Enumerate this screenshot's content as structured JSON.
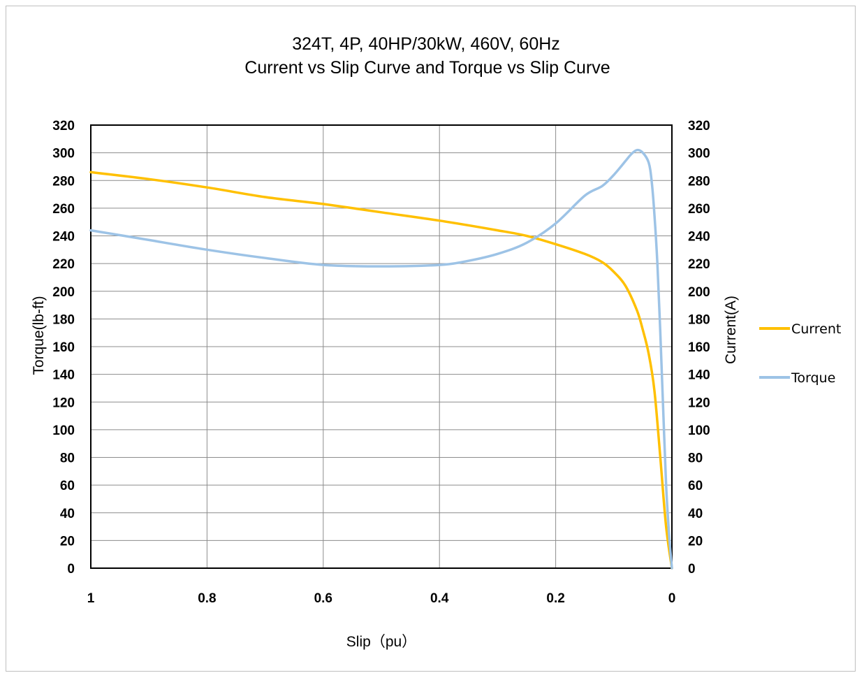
{
  "chart_data": {
    "type": "line",
    "title": "324T, 4P, 40HP/30kW, 460V, 60Hz",
    "subtitle": "Current vs Slip Curve and Torque vs Slip Curve",
    "xlabel": "Slip（pu）",
    "ylabel_left": "Torque(lb-ft)",
    "ylabel_right": "Current(A)",
    "xlim": [
      1,
      0
    ],
    "x_reversed": true,
    "ylim_left": [
      0,
      320
    ],
    "ylim_right": [
      0,
      320
    ],
    "x_ticks": [
      "1",
      "0.8",
      "0.6",
      "0.4",
      "0.2",
      "0"
    ],
    "x_tick_values": [
      1,
      0.8,
      0.6,
      0.4,
      0.2,
      0
    ],
    "y_ticks": [
      "0",
      "20",
      "40",
      "60",
      "80",
      "100",
      "120",
      "140",
      "160",
      "180",
      "200",
      "220",
      "240",
      "260",
      "280",
      "300",
      "320"
    ],
    "y_tick_values": [
      0,
      20,
      40,
      60,
      80,
      100,
      120,
      140,
      160,
      180,
      200,
      220,
      240,
      260,
      280,
      300,
      320
    ],
    "grid": true,
    "legend_position": "right",
    "series": [
      {
        "name": "Current",
        "axis": "right",
        "color": "#FFC000",
        "points": [
          [
            1.0,
            286
          ],
          [
            0.9,
            281
          ],
          [
            0.8,
            275
          ],
          [
            0.7,
            268
          ],
          [
            0.6,
            263
          ],
          [
            0.5,
            257
          ],
          [
            0.4,
            251
          ],
          [
            0.3,
            244
          ],
          [
            0.25,
            240
          ],
          [
            0.2,
            234
          ],
          [
            0.15,
            227
          ],
          [
            0.12,
            221
          ],
          [
            0.1,
            214
          ],
          [
            0.08,
            204
          ],
          [
            0.06,
            186
          ],
          [
            0.05,
            172
          ],
          [
            0.04,
            155
          ],
          [
            0.03,
            128
          ],
          [
            0.02,
            80
          ],
          [
            0.01,
            30
          ],
          [
            0.0,
            0
          ]
        ]
      },
      {
        "name": "Torque",
        "axis": "left",
        "color": "#9DC3E6",
        "points": [
          [
            1.0,
            244
          ],
          [
            0.9,
            237
          ],
          [
            0.8,
            230
          ],
          [
            0.7,
            224
          ],
          [
            0.6,
            219
          ],
          [
            0.5,
            218
          ],
          [
            0.4,
            219
          ],
          [
            0.35,
            222
          ],
          [
            0.3,
            227
          ],
          [
            0.25,
            235
          ],
          [
            0.2,
            249
          ],
          [
            0.15,
            269
          ],
          [
            0.12,
            276
          ],
          [
            0.1,
            284
          ],
          [
            0.08,
            294
          ],
          [
            0.07,
            299
          ],
          [
            0.06,
            302
          ],
          [
            0.05,
            300
          ],
          [
            0.04,
            293
          ],
          [
            0.035,
            280
          ],
          [
            0.03,
            255
          ],
          [
            0.025,
            220
          ],
          [
            0.02,
            170
          ],
          [
            0.015,
            115
          ],
          [
            0.01,
            60
          ],
          [
            0.005,
            25
          ],
          [
            0.0,
            0
          ]
        ]
      }
    ]
  }
}
